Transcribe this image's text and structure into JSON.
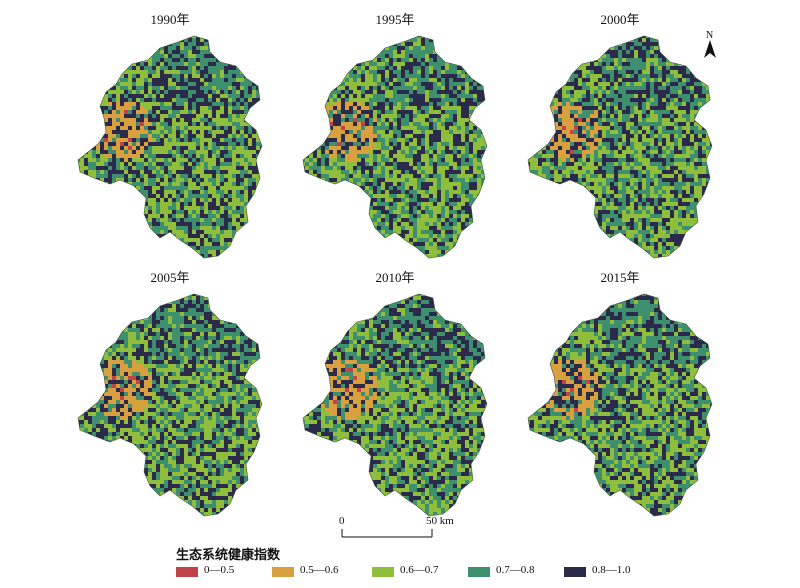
{
  "panels": [
    {
      "year": "1990年"
    },
    {
      "year": "1995年"
    },
    {
      "year": "2000年"
    },
    {
      "year": "2005年"
    },
    {
      "year": "2010年"
    },
    {
      "year": "2015年"
    }
  ],
  "north_arrow": {
    "label": "N"
  },
  "scale_bar": {
    "start": "0",
    "end": "50 km"
  },
  "legend": {
    "title": "生态系统健康指数",
    "classes": [
      {
        "label": "0—0.5",
        "color": "#c1444a"
      },
      {
        "label": "0.5—0.6",
        "color": "#d9a040"
      },
      {
        "label": "0.6—0.7",
        "color": "#8fbe3c"
      },
      {
        "label": "0.7—0.8",
        "color": "#3e8f6e"
      },
      {
        "label": "0.8—1.0",
        "color": "#2c2a4a"
      }
    ]
  }
}
